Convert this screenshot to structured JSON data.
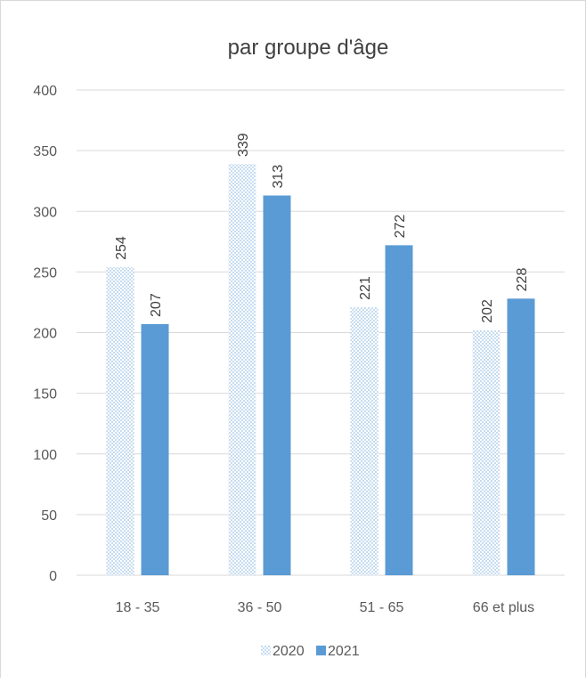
{
  "chart_data": {
    "type": "bar",
    "title": "par groupe d'âge",
    "categories": [
      "18 - 35",
      "36 - 50",
      "51 - 65",
      "66 et plus"
    ],
    "series": [
      {
        "name": "2020",
        "values": [
          254,
          339,
          221,
          202
        ],
        "color": "#9dc3e6",
        "pattern": "dotted"
      },
      {
        "name": "2021",
        "values": [
          207,
          313,
          272,
          228
        ],
        "color": "#5b9bd5"
      }
    ],
    "ylim": [
      0,
      400
    ],
    "yticks": [
      "0",
      "50",
      "100",
      "150",
      "200",
      "250",
      "300",
      "350",
      "400"
    ],
    "grid": true,
    "legend": "bottom"
  }
}
